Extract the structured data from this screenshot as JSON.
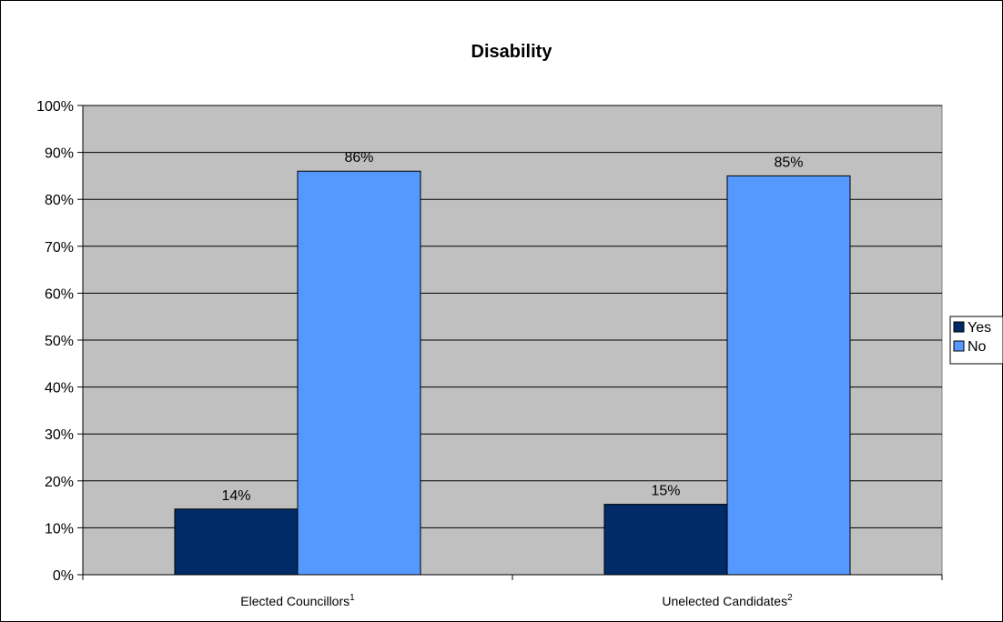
{
  "chart_data": {
    "type": "bar",
    "title": "Disability",
    "categories": [
      "Elected Councillors",
      "Unelected Candidates"
    ],
    "category_superscripts": [
      "1",
      "2"
    ],
    "series": [
      {
        "name": "Yes",
        "values": [
          14,
          15
        ],
        "labels": [
          "14%",
          "15%"
        ],
        "color": "#002B66"
      },
      {
        "name": "No",
        "values": [
          86,
          85
        ],
        "labels": [
          "86%",
          "85%"
        ],
        "color": "#5599FF"
      }
    ],
    "ylim": [
      0,
      100
    ],
    "yticks": [
      0,
      10,
      20,
      30,
      40,
      50,
      60,
      70,
      80,
      90,
      100
    ],
    "ytick_labels": [
      "0%",
      "10%",
      "20%",
      "30%",
      "40%",
      "50%",
      "60%",
      "70%",
      "80%",
      "90%",
      "100%"
    ],
    "grid": true,
    "legend_position": "right",
    "plot_background": "#C0C0C0"
  }
}
